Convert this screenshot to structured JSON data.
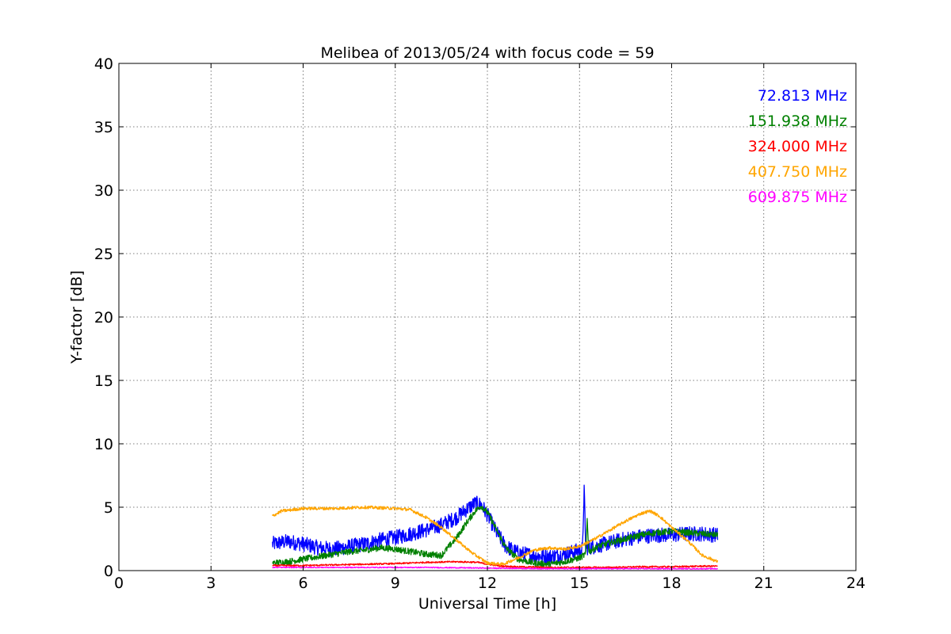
{
  "chart_data": {
    "type": "line",
    "title": "Melibea of 2013/05/24 with focus code = 59",
    "xlabel": "Universal Time [h]",
    "ylabel": "Y-factor [dB]",
    "xlim": [
      0,
      24
    ],
    "ylim": [
      0,
      40
    ],
    "xticks": [
      0,
      3,
      6,
      9,
      12,
      15,
      18,
      21,
      24
    ],
    "yticks": [
      0,
      5,
      10,
      15,
      20,
      25,
      30,
      35,
      40
    ],
    "grid": true,
    "legend_position": "top-right",
    "series": [
      {
        "name": "72.813 MHz",
        "color": "#0000ff",
        "noise": 0.6,
        "x": [
          5.0,
          5.5,
          6.0,
          6.5,
          7.0,
          7.5,
          8.0,
          8.5,
          9.0,
          9.5,
          10.0,
          10.5,
          11.0,
          11.3,
          11.6,
          11.8,
          12.0,
          12.3,
          12.6,
          13.0,
          13.5,
          14.0,
          14.5,
          15.0,
          15.1,
          15.15,
          15.2,
          15.5,
          16.0,
          16.5,
          17.0,
          17.5,
          18.0,
          18.5,
          19.0,
          19.5
        ],
        "y": [
          2.1,
          2.3,
          2.1,
          1.8,
          1.7,
          1.9,
          2.1,
          2.4,
          2.6,
          2.9,
          3.2,
          3.6,
          4.2,
          4.8,
          5.3,
          5.2,
          4.4,
          3.0,
          1.9,
          1.4,
          1.2,
          1.1,
          1.3,
          1.6,
          1.7,
          6.6,
          1.8,
          1.9,
          2.2,
          2.5,
          2.7,
          2.8,
          2.8,
          2.9,
          2.9,
          2.8
        ]
      },
      {
        "name": "151.938 MHz",
        "color": "#008000",
        "noise": 0.25,
        "x": [
          5.0,
          5.5,
          6.0,
          6.5,
          7.0,
          7.5,
          8.0,
          8.5,
          9.0,
          9.5,
          10.0,
          10.5,
          11.0,
          11.3,
          11.6,
          11.8,
          12.0,
          12.3,
          12.6,
          13.0,
          13.5,
          14.0,
          14.5,
          15.0,
          15.2,
          15.25,
          15.3,
          15.6,
          16.0,
          16.5,
          17.0,
          17.5,
          18.0,
          18.5,
          19.0,
          19.5
        ],
        "y": [
          0.6,
          0.7,
          0.9,
          1.1,
          1.3,
          1.5,
          1.6,
          1.8,
          1.7,
          1.5,
          1.3,
          1.2,
          2.6,
          3.7,
          4.7,
          5.1,
          4.6,
          3.2,
          1.8,
          0.9,
          0.6,
          0.5,
          0.7,
          1.0,
          1.3,
          4.2,
          1.5,
          1.9,
          2.2,
          2.5,
          2.8,
          3.0,
          3.1,
          3.0,
          2.9,
          2.8
        ]
      },
      {
        "name": "324.000 MHz",
        "color": "#ff0000",
        "noise": 0.06,
        "x": [
          5.0,
          6.0,
          7.0,
          8.0,
          9.0,
          10.0,
          11.0,
          11.7,
          12.0,
          12.5,
          13.0,
          14.0,
          15.0,
          16.0,
          17.0,
          18.0,
          19.0,
          19.5
        ],
        "y": [
          0.4,
          0.4,
          0.45,
          0.5,
          0.55,
          0.65,
          0.7,
          0.65,
          0.5,
          0.35,
          0.3,
          0.25,
          0.25,
          0.25,
          0.3,
          0.3,
          0.35,
          0.35
        ]
      },
      {
        "name": "407.750 MHz",
        "color": "#ffa500",
        "noise": 0.12,
        "x": [
          5.0,
          5.3,
          6.0,
          7.0,
          8.0,
          9.0,
          9.5,
          10.0,
          10.5,
          11.0,
          11.5,
          12.0,
          12.5,
          13.0,
          13.5,
          14.0,
          14.5,
          15.0,
          15.5,
          16.0,
          16.5,
          17.0,
          17.3,
          17.6,
          18.0,
          18.5,
          19.0,
          19.5
        ],
        "y": [
          4.3,
          4.7,
          4.9,
          4.9,
          5.0,
          4.9,
          4.8,
          4.2,
          3.4,
          2.4,
          1.4,
          0.6,
          0.5,
          1.0,
          1.6,
          1.8,
          1.7,
          1.9,
          2.5,
          3.2,
          3.9,
          4.5,
          4.7,
          4.3,
          3.4,
          2.4,
          1.2,
          0.7
        ]
      },
      {
        "name": "609.875 MHz",
        "color": "#ff00ff",
        "noise": 0.04,
        "x": [
          5.0,
          6.0,
          8.0,
          10.0,
          12.0,
          14.0,
          16.0,
          18.0,
          19.5
        ],
        "y": [
          0.25,
          0.25,
          0.25,
          0.25,
          0.2,
          0.15,
          0.15,
          0.15,
          0.15
        ]
      }
    ]
  }
}
